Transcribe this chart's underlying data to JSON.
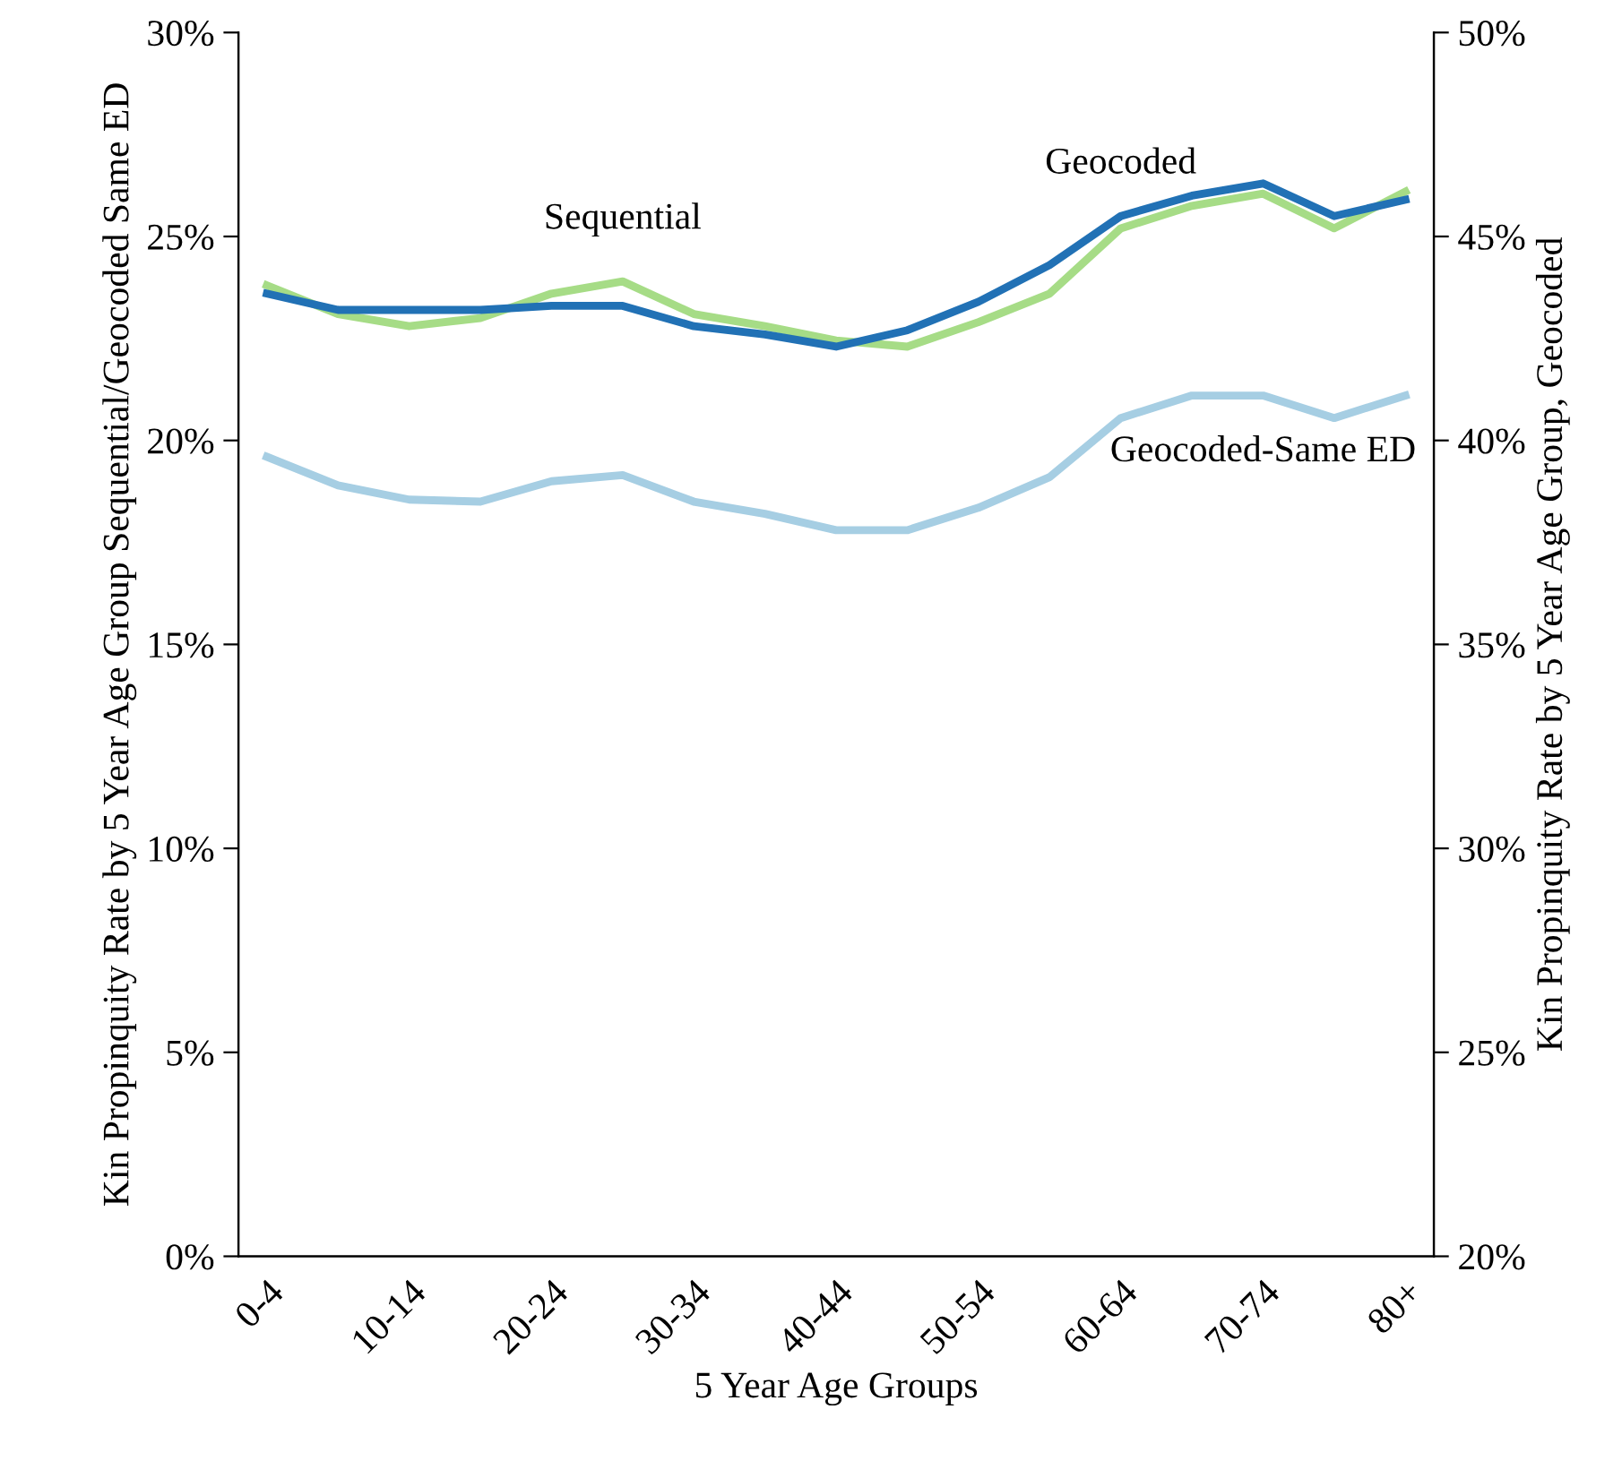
{
  "chart_data": {
    "type": "line",
    "xlabel": "5 Year Age Groups",
    "ylabel": "Kin Propinquity Rate by 5 Year Age Group Sequential/Geocoded Same ED",
    "y2label": "Kin Propinquity Rate by 5 Year Age Group, Geocoded",
    "categories": [
      "0-4",
      null,
      "10-14",
      null,
      "20-24",
      null,
      "30-34",
      null,
      "40-44",
      null,
      "50-54",
      null,
      "60-64",
      null,
      "70-74",
      null,
      "80+"
    ],
    "series": [
      {
        "name": "Sequential",
        "color": "#a6dc86",
        "values": [
          23.8,
          23.1,
          22.8,
          23.0,
          23.6,
          23.9,
          23.1,
          22.8,
          22.45,
          22.3,
          22.9,
          23.6,
          25.2,
          25.75,
          26.05,
          25.2,
          26.1
        ]
      },
      {
        "name": "Geocoded",
        "color": "#2171b5",
        "axis": "y2",
        "values": [
          43.6,
          43.2,
          43.2,
          43.2,
          43.3,
          43.3,
          42.8,
          42.6,
          42.3,
          42.7,
          43.4,
          44.3,
          45.5,
          46.0,
          46.3,
          45.5,
          45.9
        ]
      },
      {
        "name": "Geocoded-Same ED",
        "color": "#a6cee3",
        "values": [
          19.6,
          18.9,
          18.55,
          18.5,
          19.0,
          19.15,
          18.5,
          18.2,
          17.8,
          17.8,
          18.35,
          19.1,
          20.55,
          21.1,
          21.1,
          20.55,
          21.1
        ]
      }
    ],
    "ylim": [
      0,
      30
    ],
    "yticks": [
      {
        "value": 0,
        "label": "0%"
      },
      {
        "value": 5,
        "label": "5%"
      },
      {
        "value": 10,
        "label": "10%"
      },
      {
        "value": 15,
        "label": "15%"
      },
      {
        "value": 20,
        "label": "20%"
      },
      {
        "value": 25,
        "label": "25%"
      },
      {
        "value": 30,
        "label": "30%"
      }
    ],
    "y2lim": [
      20,
      50
    ],
    "y2ticks": [
      {
        "value": 20,
        "label": "20%"
      },
      {
        "value": 25,
        "label": "25%"
      },
      {
        "value": 30,
        "label": "30%"
      },
      {
        "value": 35,
        "label": "35%"
      },
      {
        "value": 40,
        "label": "40%"
      },
      {
        "value": 45,
        "label": "45%"
      },
      {
        "value": 50,
        "label": "50%"
      }
    ],
    "grid": false,
    "legend": false,
    "line_style": "solid"
  }
}
